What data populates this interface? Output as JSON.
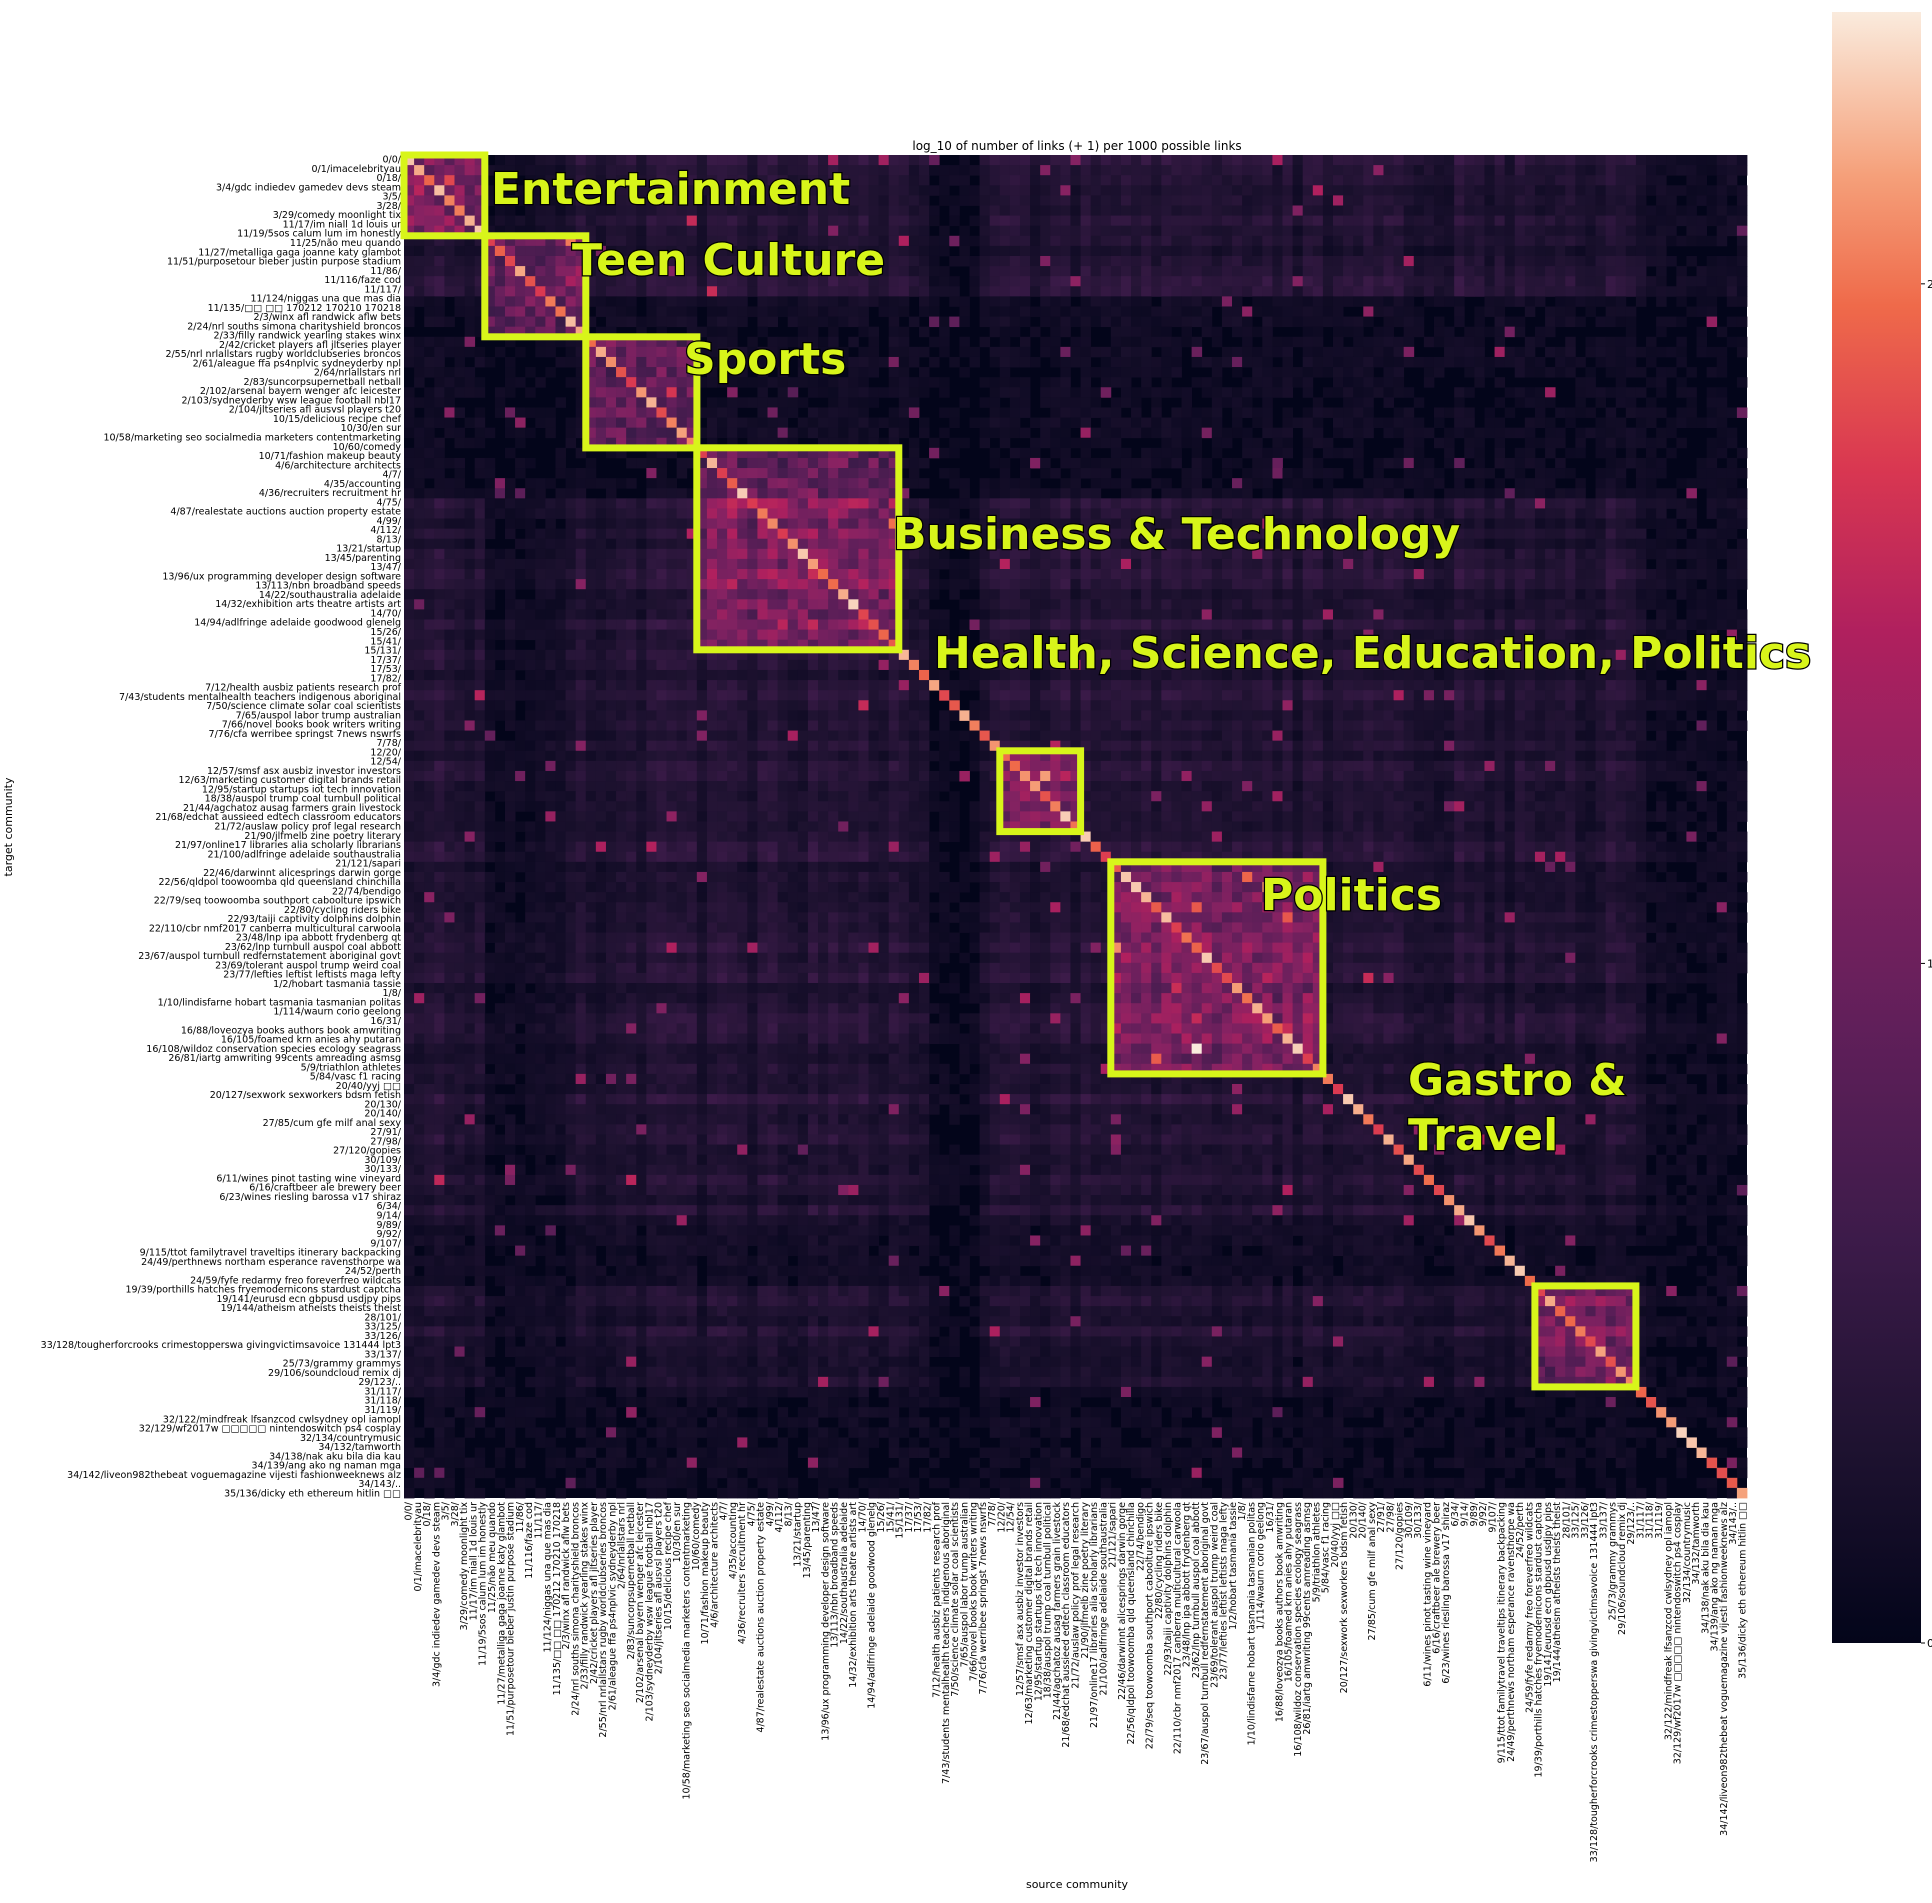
{
  "chart_data": {
    "type": "heatmap",
    "title": "log_10 of number of links (+ 1) per 1000 possible links",
    "xlabel": "source community",
    "ylabel": "target community",
    "colorbar": {
      "ticks": [
        0,
        1,
        2
      ],
      "range": [
        0,
        2.4
      ],
      "colormap": "rocket"
    },
    "matrix_size": 133,
    "labeled_rows": [
      {
        "row": 0,
        "label": "0/0/"
      },
      {
        "row": 2,
        "label": "0/1/imacelebrityau"
      },
      {
        "row": 4,
        "label": "0/18/"
      },
      {
        "row": 6,
        "label": "3/4/gdc indiedev gamedev devs steam"
      },
      {
        "row": 8,
        "label": "3/5/"
      },
      {
        "row": 10,
        "label": "3/28/"
      },
      {
        "row": 12,
        "label": "3/29/comedy moonlight tix"
      },
      {
        "row": 14,
        "label": "11/17/im niall 1d louis ur"
      },
      {
        "row": 16,
        "label": "11/19/5sos calum lum im honestly"
      },
      {
        "row": 18,
        "label": "11/25/não meu quando"
      },
      {
        "row": 20,
        "label": "11/27/metalliga gaga joanne katy glambot"
      },
      {
        "row": 22,
        "label": "11/51/purposetour bieber justin purpose stadium"
      },
      {
        "row": 24,
        "label": "11/86/"
      },
      {
        "row": 26,
        "label": "11/116/faze cod"
      },
      {
        "row": 28,
        "label": "11/117/"
      },
      {
        "row": 30,
        "label": "11/124/niggas una que mas dia"
      },
      {
        "row": 32,
        "label": "11/135/□□ □□ 170212 170210 170218"
      },
      {
        "row": 34,
        "label": "2/3/winx afl randwick aflw bets"
      },
      {
        "row": 36,
        "label": "2/24/nrl souths simona charityshield broncos"
      },
      {
        "row": 38,
        "label": "2/33/filly randwick yearling stakes winx"
      },
      {
        "row": 40,
        "label": "2/42/cricket players afl jltseries player"
      },
      {
        "row": 42,
        "label": "2/55/nrl nrlallstars rugby worldclubseries broncos"
      },
      {
        "row": 44,
        "label": "2/61/aleague ffa ps4nplvic sydneyderby npl"
      },
      {
        "row": 46,
        "label": "2/64/nrlallstars nrl"
      },
      {
        "row": 48,
        "label": "2/83/suncorpsupernetball netball"
      },
      {
        "row": 50,
        "label": "2/102/arsenal bayern wenger afc leicester"
      },
      {
        "row": 52,
        "label": "2/103/sydneyderby wsw league football nbl17"
      },
      {
        "row": 54,
        "label": "2/104/jltseries afl ausvsl players t20"
      },
      {
        "row": 56,
        "label": "10/15/delicious recipe chef"
      },
      {
        "row": 58,
        "label": "10/30/en sur"
      },
      {
        "row": 60,
        "label": "10/58/marketing seo socialmedia marketers contentmarketing"
      },
      {
        "row": 62,
        "label": "10/60/comedy"
      },
      {
        "row": 64,
        "label": "10/71/fashion makeup beauty"
      },
      {
        "row": 66,
        "label": "4/6/architecture architects"
      },
      {
        "row": 68,
        "label": "4/7/"
      },
      {
        "row": 70,
        "label": "4/35/accounting"
      },
      {
        "row": 72,
        "label": "4/36/recruiters recruitment hr"
      },
      {
        "row": 74,
        "label": "4/75/"
      },
      {
        "row": 76,
        "label": "4/87/realestate auctions auction property estate"
      },
      {
        "row": 78,
        "label": "4/99/"
      },
      {
        "row": 80,
        "label": "4/112/"
      },
      {
        "row": 82,
        "label": "8/13/"
      },
      {
        "row": 84,
        "label": "13/21/startup"
      },
      {
        "row": 86,
        "label": "13/45/parenting"
      },
      {
        "row": 88,
        "label": "13/47/"
      },
      {
        "row": 90,
        "label": "13/96/ux programming developer design software"
      },
      {
        "row": 92,
        "label": "13/113/nbn broadband speeds"
      },
      {
        "row": 94,
        "label": "14/22/southaustralia adelaide"
      },
      {
        "row": 96,
        "label": "14/32/exhibition arts theatre artists art"
      },
      {
        "row": 98,
        "label": "14/70/"
      },
      {
        "row": 100,
        "label": "14/94/adlfringe adelaide goodwood glenelg"
      },
      {
        "row": 102,
        "label": "15/26/"
      },
      {
        "row": 104,
        "label": "15/41/"
      },
      {
        "row": 106,
        "label": "15/131/"
      },
      {
        "row": 108,
        "label": "17/37/"
      },
      {
        "row": 110,
        "label": "17/53/"
      },
      {
        "row": 112,
        "label": "17/82/"
      },
      {
        "row": 114,
        "label": "7/12/health ausbiz patients research prof"
      },
      {
        "row": 116,
        "label": "7/43/students mentalhealth teachers indigenous aboriginal"
      },
      {
        "row": 118,
        "label": "7/50/science climate solar coal scientists"
      },
      {
        "row": 120,
        "label": "7/65/auspol labor trump australian"
      },
      {
        "row": 122,
        "label": "7/66/novel books book writers writing"
      },
      {
        "row": 124,
        "label": "7/76/cfa werribee springst 7news nswrfs"
      },
      {
        "row": 126,
        "label": "7/78/"
      },
      {
        "row": 128,
        "label": "12/20/"
      },
      {
        "row": 130,
        "label": "12/54/"
      },
      {
        "row": 132,
        "label": "12/57/smsf asx ausbiz investor investors"
      }
    ],
    "extra_row_labels": [
      "12/63/marketing customer digital brands retail",
      "12/95/startup startups iot tech innovation",
      "18/38/auspol trump coal turnbull political",
      "21/44/agchatoz ausag farmers grain livestock",
      "21/68/edchat aussieed edtech classroom educators",
      "21/72/auslaw policy prof legal research",
      "21/90/jlfmelb zine poetry literary",
      "21/97/online17 libraries alia scholarly librarians",
      "21/100/adlfringe adelaide southaustralia",
      "21/121/sapari",
      "22/46/darwinnt alicesprings darwin gorge",
      "22/56/qldpol toowoomba qld queensland chinchilla",
      "22/74/bendigo",
      "22/79/seq toowoomba southport caboolture ipswich",
      "22/80/cycling riders bike",
      "22/93/taiji captivity dolphins dolphin",
      "22/110/cbr nmf2017 canberra multicultural carwoola",
      "23/48/lnp ipa abbott frydenberg qt",
      "23/62/lnp turnbull auspol coal abbott",
      "23/67/auspol turnbull redfernstatement aboriginal govt",
      "23/69/tolerant auspol trump weird coal",
      "23/77/lefties leftist leftists maga lefty",
      "1/2/hobart tasmania tassie",
      "1/8/",
      "1/10/lindisfarne hobart tasmania tasmanian politas",
      "1/114/waurn corio geelong",
      "16/31/",
      "16/88/loveozya books authors book amwriting",
      "16/105/foamed krn anies ahy putaran",
      "16/108/wildoz conservation species ecology seagrass",
      "26/81/iartg amwriting 99cents amreading asmsg",
      "5/9/triathlon athletes",
      "5/84/vasc f1 racing",
      "20/40/yyj □□",
      "20/127/sexwork sexworkers bdsm fetish",
      "20/130/",
      "20/140/",
      "27/85/cum gfe milf anal sexy",
      "27/91/",
      "27/98/",
      "27/120/gopies",
      "30/109/",
      "30/133/",
      "6/11/wines pinot tasting wine vineyard",
      "6/16/craftbeer ale brewery beer",
      "6/23/wines riesling barossa v17 shiraz",
      "6/34/",
      "9/14/",
      "9/89/",
      "9/92/",
      "9/107/",
      "9/115/ttot familytravel traveltips itinerary backpacking",
      "24/49/perthnews northam esperance ravensthorpe wa",
      "24/52/perth",
      "24/59/fyfe redarmy freo foreverfreo wildcats",
      "19/39/porthills hatches fryemodernicons stardust captcha",
      "19/141/eurusd ecn gbpusd usdjpy pips",
      "19/144/atheism atheists theists theist",
      "28/101/",
      "33/125/",
      "33/126/",
      "33/128/tougherforcrooks crimestopperswa givingvictimsavoice 131444 lpt3",
      "33/137/",
      "25/73/grammy grammys",
      "29/106/soundcloud remix dj",
      "29/123/..",
      "31/117/",
      "31/118/",
      "31/119/",
      "32/122/mindfreak lfsanzcod cwlsydney opl iamopl",
      "32/129/wf2017w □□□□□ nintendoswitch ps4 cosplay",
      "32/134/countrymusic",
      "34/132/tamworth",
      "34/138/nak aku bila dia kau",
      "34/139/ang ako ng naman mga",
      "34/142/liveon982thebeat voguemagazine vijesti fashionweeknews alz",
      "34/143/..",
      "35/136/dicky eth ethereum hitlin □□"
    ],
    "column_labels_order": "same as rows (symmetric axes)",
    "clusters": [
      {
        "name": "Entertainment",
        "start": 0,
        "end": 8
      },
      {
        "name": "Teen Culture",
        "start": 8,
        "end": 18
      },
      {
        "name": "Sports",
        "start": 18,
        "end": 29
      },
      {
        "name": "Business & Technology",
        "start": 29,
        "end": 49
      },
      {
        "name": "Health, Science, Education, Politics",
        "start": 59,
        "end": 67
      },
      {
        "name": "Politics",
        "start": 70,
        "end": 91
      },
      {
        "name": "Gastro & Travel",
        "start": 112,
        "end": 122
      }
    ],
    "cluster_label_text": {
      "c0": "Entertainment",
      "c1": "Teen Culture",
      "c2": "Sports",
      "c3": "Business & Technology",
      "c4": "Health, Science, Education, Politics",
      "c5": "Politics",
      "c6a": "Gastro &",
      "c6b": "Travel"
    }
  }
}
